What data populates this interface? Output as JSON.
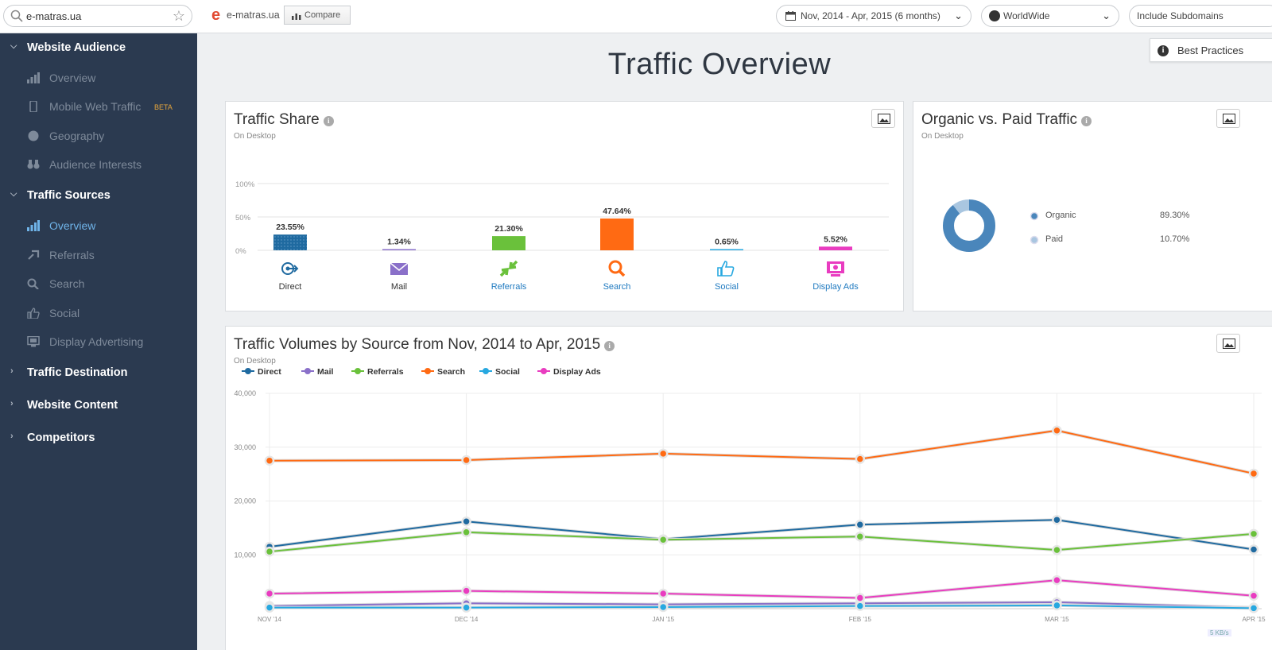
{
  "topbar": {
    "search_value": "e-matras.ua",
    "site_name": "e-matras.ua",
    "compare_label": "Compare",
    "date_range": "Nov, 2014 - Apr, 2015 (6 months)",
    "region": "WorldWide",
    "subdomains": "Include Subdomains"
  },
  "sidebar": {
    "website_audience": "Website Audience",
    "audience_items": [
      {
        "label": "Overview",
        "icon": "chart-icon"
      },
      {
        "label": "Mobile Web Traffic",
        "icon": "mobile-icon",
        "badge": "BETA"
      },
      {
        "label": "Geography",
        "icon": "globe-icon"
      },
      {
        "label": "Audience Interests",
        "icon": "binoculars-icon"
      }
    ],
    "traffic_sources": "Traffic Sources",
    "sources_items": [
      {
        "label": "Overview",
        "icon": "chart-icon",
        "active": true
      },
      {
        "label": "Referrals",
        "icon": "referrals-icon"
      },
      {
        "label": "Search",
        "icon": "search-icon"
      },
      {
        "label": "Social",
        "icon": "thumbs-up-icon"
      },
      {
        "label": "Display Advertising",
        "icon": "display-ad-icon"
      }
    ],
    "traffic_destination": "Traffic Destination",
    "website_content": "Website Content",
    "competitors": "Competitors"
  },
  "main": {
    "title": "Traffic Overview",
    "best_practices": "Best Practices"
  },
  "traffic_share": {
    "title": "Traffic Share",
    "subtitle": "On Desktop",
    "y_ticks": [
      "100%",
      "50%",
      "0%"
    ],
    "sources": [
      {
        "name": "Direct",
        "value": 23.55,
        "label": "23.55%",
        "color": "#1f6aa0",
        "label_color": "#333"
      },
      {
        "name": "Mail",
        "value": 1.34,
        "label": "1.34%",
        "color": "#8a70c9",
        "label_color": "#333"
      },
      {
        "name": "Referrals",
        "value": 21.3,
        "label": "21.30%",
        "color": "#6ac13b",
        "label_color": "#1f7ac0"
      },
      {
        "name": "Search",
        "value": 47.64,
        "label": "47.64%",
        "color": "#ff6a13",
        "label_color": "#1f7ac0"
      },
      {
        "name": "Social",
        "value": 0.65,
        "label": "0.65%",
        "color": "#27a8e0",
        "label_color": "#1f7ac0"
      },
      {
        "name": "Display Ads",
        "value": 5.52,
        "label": "5.52%",
        "color": "#e93cc0",
        "label_color": "#1f7ac0"
      }
    ]
  },
  "organic_paid": {
    "title": "Organic vs. Paid Traffic",
    "subtitle": "On Desktop",
    "items": [
      {
        "name": "Organic",
        "value": 89.3,
        "label": "89.30%",
        "color": "#4a86bb"
      },
      {
        "name": "Paid",
        "value": 10.7,
        "label": "10.70%",
        "color": "#a9c6e0"
      }
    ]
  },
  "volumes": {
    "title": "Traffic Volumes by Source from Nov, 2014 to Apr, 2015",
    "subtitle": "On Desktop",
    "footer_badge": "5 KB/s"
  },
  "chart_data": {
    "type": "line",
    "x": [
      "NOV '14",
      "DEC '14",
      "JAN '15",
      "FEB '15",
      "MAR '15",
      "APR '15"
    ],
    "y_ticks": [
      "40,000",
      "30,000",
      "20,000",
      "10,000"
    ],
    "ylim": [
      0,
      40000
    ],
    "grid": true,
    "legend": "top-left",
    "series": [
      {
        "name": "Direct",
        "color": "#1f6aa0",
        "values": [
          11500,
          16200,
          12900,
          15600,
          16500,
          11000
        ]
      },
      {
        "name": "Mail",
        "color": "#8a70c9",
        "values": [
          500,
          1000,
          800,
          1000,
          1200,
          200
        ]
      },
      {
        "name": "Referrals",
        "color": "#6ac13b",
        "values": [
          10600,
          14200,
          12800,
          13400,
          10900,
          13900
        ]
      },
      {
        "name": "Search",
        "color": "#ff6a13",
        "values": [
          27500,
          27600,
          28800,
          27800,
          33100,
          25100
        ]
      },
      {
        "name": "Social",
        "color": "#27a8e0",
        "values": [
          200,
          200,
          300,
          500,
          600,
          100
        ]
      },
      {
        "name": "Display Ads",
        "color": "#e93cc0",
        "values": [
          2800,
          3300,
          2800,
          2000,
          5300,
          2400
        ]
      }
    ]
  }
}
